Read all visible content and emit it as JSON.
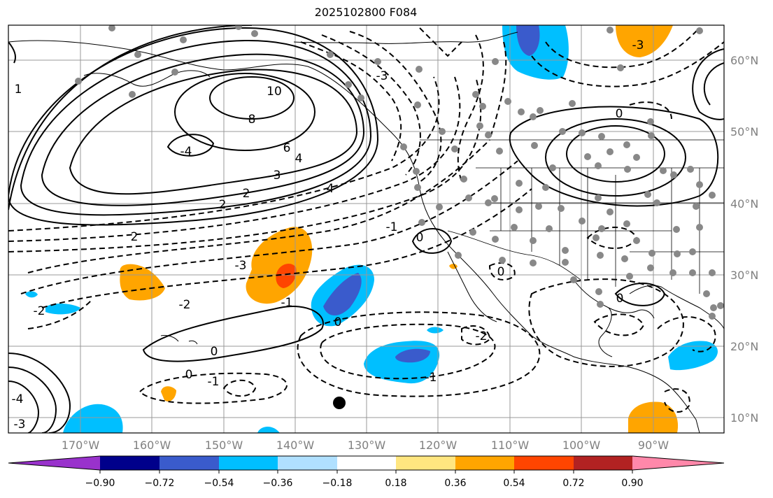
{
  "title": "2025102800 F084",
  "lat_labels": [
    "60°N",
    "50°N",
    "40°N",
    "30°N",
    "20°N",
    "10°N"
  ],
  "lon_labels": [
    "170°W",
    "160°W",
    "150°W",
    "140°W",
    "130°W",
    "120°W",
    "110°W",
    "100°W",
    "90°W"
  ],
  "colorbar": {
    "ticks": [
      "−0.90",
      "−0.72",
      "−0.54",
      "−0.36",
      "−0.18",
      "0.18",
      "0.36",
      "0.54",
      "0.72",
      "0.90"
    ],
    "colors": [
      "#9932cc",
      "#00008b",
      "#3a5bcc",
      "#00bfff",
      "#b0e0ff",
      "#ffffff",
      "#ffe680",
      "#ffa500",
      "#ff4500",
      "#b22222",
      "#ff88aa"
    ]
  },
  "contour_labels": [
    "10",
    "8",
    "6",
    "4",
    "4",
    "3",
    "2",
    "2",
    "2",
    "-4",
    "-3",
    "-2",
    "-1",
    "-1",
    "0",
    "0",
    "0",
    "0",
    "-2",
    "-1",
    "-1",
    "0",
    "0",
    "-2",
    "-4",
    "-3",
    "1",
    "-3",
    "-3",
    "0"
  ],
  "colors": {
    "grid": "#999999",
    "dot": "#888888",
    "orange": "#ffa500",
    "red": "#ff4500",
    "blue": "#00bfff",
    "darkblue": "#3a5bcc"
  }
}
